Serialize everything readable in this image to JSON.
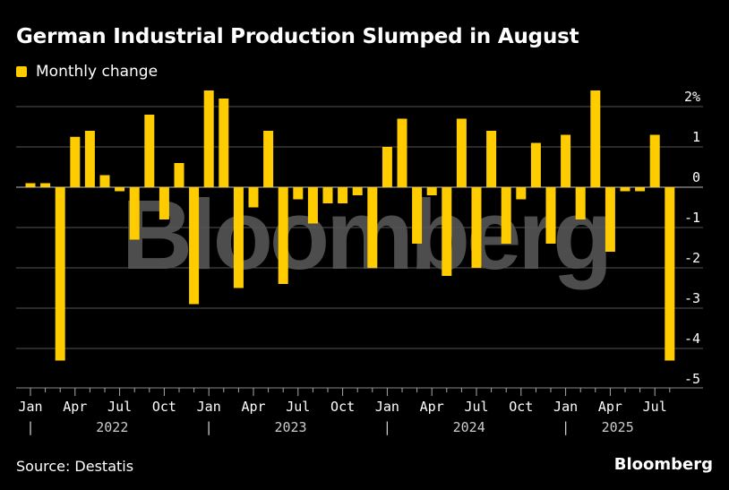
{
  "title": "German Industrial Production Slumped in August",
  "legend": {
    "label": "Monthly change",
    "color": "#ffcc00"
  },
  "source": "Source: Destatis",
  "brand": "Bloomberg",
  "watermark": "Bloomberg",
  "chart_data": {
    "type": "bar",
    "title": "German Industrial Production Slumped in August",
    "series": [
      {
        "name": "Monthly change",
        "color": "#ffcc00",
        "values": [
          0.1,
          0.1,
          -4.3,
          1.25,
          1.4,
          0.3,
          -0.1,
          -1.3,
          1.8,
          -0.8,
          0.6,
          -2.9,
          2.4,
          2.2,
          -2.5,
          -0.5,
          1.4,
          -2.4,
          -0.3,
          -0.9,
          -0.4,
          -0.4,
          -0.2,
          -2.0,
          1.0,
          1.7,
          -1.4,
          -0.2,
          -2.2,
          1.7,
          -2.0,
          1.4,
          -1.4,
          -0.3,
          1.1,
          -1.4,
          1.3,
          -0.8,
          2.4,
          -1.6,
          -0.1,
          -0.1,
          1.3,
          -4.3
        ]
      }
    ],
    "x_start": "2022-01",
    "x_end": "2025-08",
    "frequency": "monthly",
    "month_ticks": [
      "Jan",
      "Apr",
      "Jul",
      "Oct",
      "Jan",
      "Apr",
      "Jul",
      "Oct",
      "Jan",
      "Apr",
      "Jul",
      "Oct",
      "Jan",
      "Apr",
      "Jul"
    ],
    "year_labels": [
      "2022",
      "2023",
      "2024",
      "2025"
    ],
    "y_ticks": [
      2,
      1,
      0,
      -1,
      -2,
      -3,
      -4,
      -5
    ],
    "y_tick_labels": [
      "2%",
      "1",
      "0",
      "-1",
      "-2",
      "-3",
      "-4",
      "-5"
    ],
    "ylim": [
      -5,
      2.2
    ],
    "grid": true,
    "y_axis_side": "right",
    "legend_position": "top-left"
  }
}
